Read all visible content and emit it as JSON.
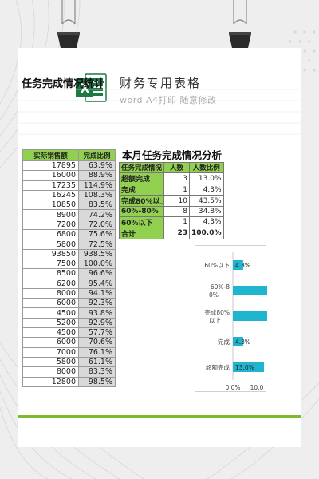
{
  "header": {
    "title": "财务专用表格",
    "subtitle": "word A4打印 随意修改"
  },
  "left_section": {
    "title": "任务完成情况统计",
    "columns": [
      "实际销售额",
      "完成比例"
    ],
    "rows": [
      [
        "17895",
        "63.9%"
      ],
      [
        "16000",
        "88.9%"
      ],
      [
        "17235",
        "114.9%"
      ],
      [
        "16245",
        "108.3%"
      ],
      [
        "10850",
        "83.5%"
      ],
      [
        "8900",
        "74.2%"
      ],
      [
        "7200",
        "72.0%"
      ],
      [
        "6800",
        "75.6%"
      ],
      [
        "5800",
        "72.5%"
      ],
      [
        "93850",
        "938.5%"
      ],
      [
        "7500",
        "100.0%"
      ],
      [
        "8500",
        "96.6%"
      ],
      [
        "6200",
        "95.4%"
      ],
      [
        "8000",
        "94.1%"
      ],
      [
        "6000",
        "92.3%"
      ],
      [
        "4500",
        "93.8%"
      ],
      [
        "5200",
        "92.9%"
      ],
      [
        "4500",
        "57.7%"
      ],
      [
        "6000",
        "70.6%"
      ],
      [
        "7000",
        "76.1%"
      ],
      [
        "5800",
        "61.1%"
      ],
      [
        "8000",
        "83.3%"
      ],
      [
        "12800",
        "98.5%"
      ]
    ]
  },
  "right_section": {
    "title": "本月任务完成情况分析",
    "columns": [
      "任务完成情况",
      "人数",
      "人数比例"
    ],
    "rows": [
      [
        "超额完成",
        "3",
        "13.0%"
      ],
      [
        "完成",
        "1",
        "4.3%"
      ],
      [
        "完成80%以上",
        "10",
        "43.5%"
      ],
      [
        "60%-80%",
        "8",
        "34.8%"
      ],
      [
        "60%以下",
        "1",
        "4.3%"
      ]
    ],
    "total": [
      "合计",
      "23",
      "100.0%"
    ]
  },
  "chart_data": {
    "type": "bar",
    "orientation": "horizontal",
    "categories": [
      "60%以下",
      "60%-80%",
      "完成80%以上",
      "完成",
      "超额完成"
    ],
    "values": [
      4.3,
      34.8,
      43.5,
      4.3,
      13.0
    ],
    "data_labels": [
      "4.3%",
      "",
      "",
      "4.3%",
      "13.0%"
    ],
    "x_ticks": [
      "0.0%",
      "10.0"
    ],
    "bar_color": "#1fb5cf"
  },
  "colors": {
    "header_green": "#92d050",
    "accent_line": "#7dbb2c",
    "excel_green": "#1d7a45"
  },
  "icons": [
    "excel-icon",
    "binder-clip-icon"
  ]
}
